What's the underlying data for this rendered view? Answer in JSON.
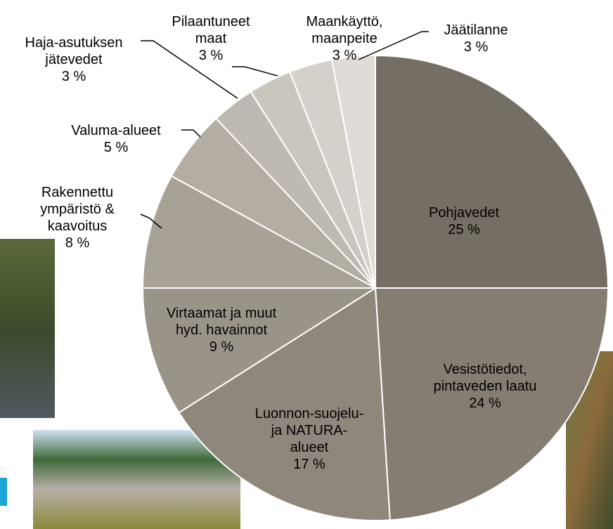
{
  "chart_data": {
    "type": "pie",
    "categories": [
      "Pohjavedet",
      "Vesistötiedot,\npintaveden laatu",
      "Luonnon-suojelu-\nja NATURA-\nalueet",
      "Virtaamat ja muut\nhyd. havainnot",
      "Rakennettu\nympäristö &\nkaavoitus",
      "Valuma-alueet",
      "Haja-asutuksen\njätevedet",
      "Pilaantuneet\nmaat",
      "Maankäyttö,\nmaanpeite",
      "Jäätilanne"
    ],
    "values": [
      25,
      24,
      17,
      9,
      8,
      5,
      3,
      3,
      3,
      3
    ],
    "value_labels": [
      "25 %",
      "24 %",
      "17 %",
      "9 %",
      "8 %",
      "5 %",
      "3 %",
      "3 %",
      "3 %",
      "3 %"
    ],
    "colors": [
      "#756e64",
      "#857d71",
      "#8f877c",
      "#9a9488",
      "#a7a196",
      "#b3ada3",
      "#bfbab1",
      "#cac6be",
      "#d5d1ca",
      "#dfdcd7"
    ]
  }
}
